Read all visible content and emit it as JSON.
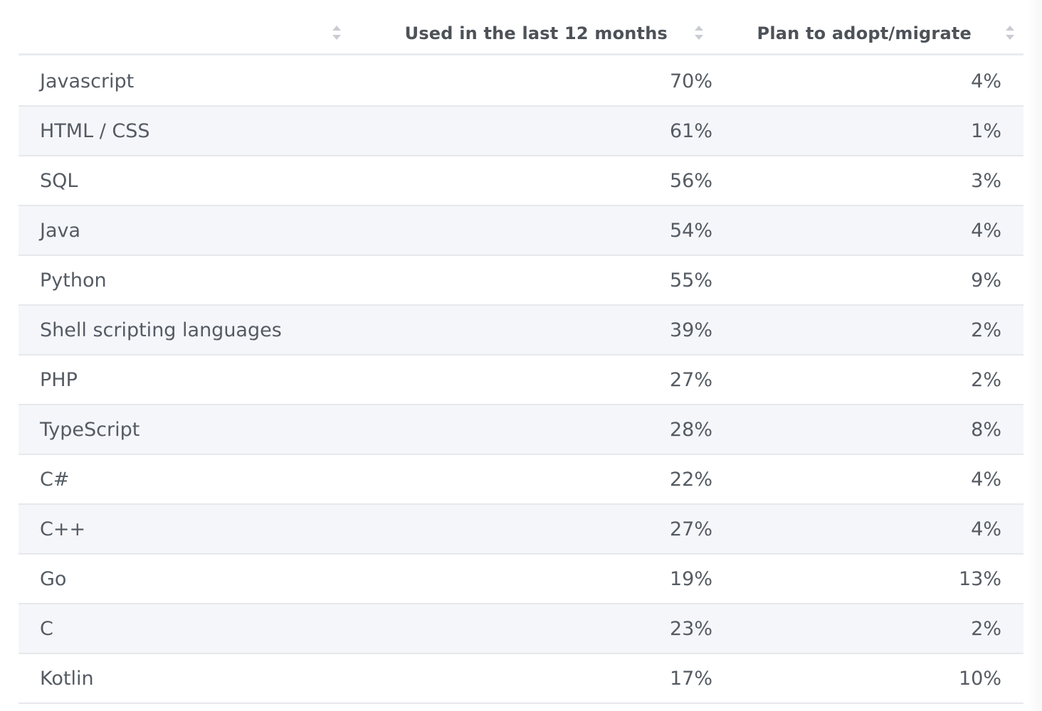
{
  "table": {
    "columns": [
      {
        "label": "",
        "sort_icon": "sort-icon"
      },
      {
        "label": "Used in the last 12 months",
        "sort_icon": "sort-icon"
      },
      {
        "label": "Plan to adopt/migrate",
        "sort_icon": "sort-icon"
      }
    ],
    "rows": [
      {
        "name": "Javascript",
        "used": "70%",
        "plan": "4%"
      },
      {
        "name": "HTML / CSS",
        "used": "61%",
        "plan": "1%"
      },
      {
        "name": "SQL",
        "used": "56%",
        "plan": "3%"
      },
      {
        "name": "Java",
        "used": "54%",
        "plan": "4%"
      },
      {
        "name": "Python",
        "used": "55%",
        "plan": "9%"
      },
      {
        "name": "Shell scripting languages",
        "used": "39%",
        "plan": "2%"
      },
      {
        "name": "PHP",
        "used": "27%",
        "plan": "2%"
      },
      {
        "name": "TypeScript",
        "used": "28%",
        "plan": "8%"
      },
      {
        "name": "C#",
        "used": "22%",
        "plan": "4%"
      },
      {
        "name": "C++",
        "used": "27%",
        "plan": "4%"
      },
      {
        "name": "Go",
        "used": "19%",
        "plan": "13%"
      },
      {
        "name": "C",
        "used": "23%",
        "plan": "2%"
      },
      {
        "name": "Kotlin",
        "used": "17%",
        "plan": "10%"
      }
    ]
  },
  "colors": {
    "text": "#555b63",
    "header_text": "#4d5258",
    "row_alt_bg": "#f5f6fa",
    "border": "#e6e8ec",
    "sort_icon": "#c9ccd2"
  }
}
